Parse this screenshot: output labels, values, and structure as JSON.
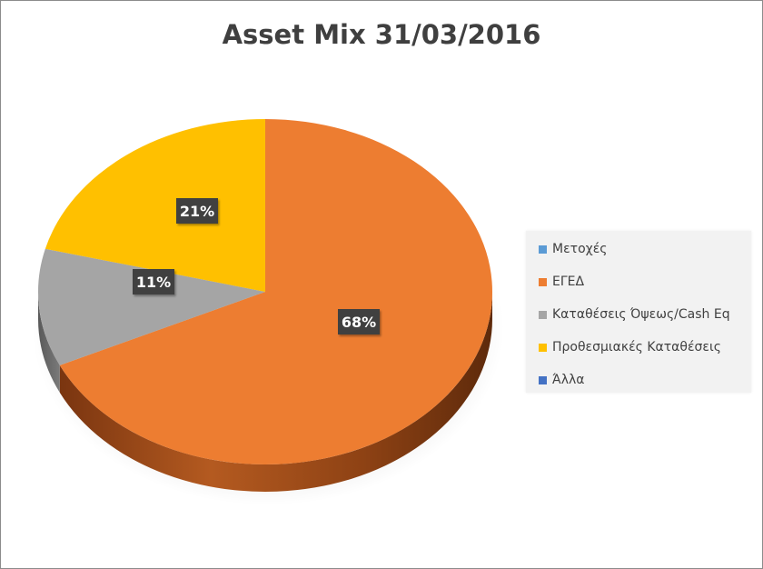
{
  "chart_data": {
    "type": "pie",
    "title": "Asset Mix 31/03/2016",
    "style": "3d-pie",
    "legend_position": "right",
    "slices": [
      {
        "label": "Μετοχές",
        "value": 0,
        "color": "#5b9bd5",
        "data_label": ""
      },
      {
        "label": "ΕΓΕΔ",
        "value": 68,
        "color": "#ed7d31",
        "data_label": "68%"
      },
      {
        "label": "Καταθέσεις Όψεως/Cash Eq",
        "value": 11,
        "color": "#a5a5a5",
        "data_label": "11%"
      },
      {
        "label": "Προθεσμιακές Καταθέσεις",
        "value": 21,
        "color": "#ffc000",
        "data_label": "21%"
      },
      {
        "label": "Άλλα",
        "value": 0,
        "color": "#4472c4",
        "data_label": ""
      }
    ]
  }
}
